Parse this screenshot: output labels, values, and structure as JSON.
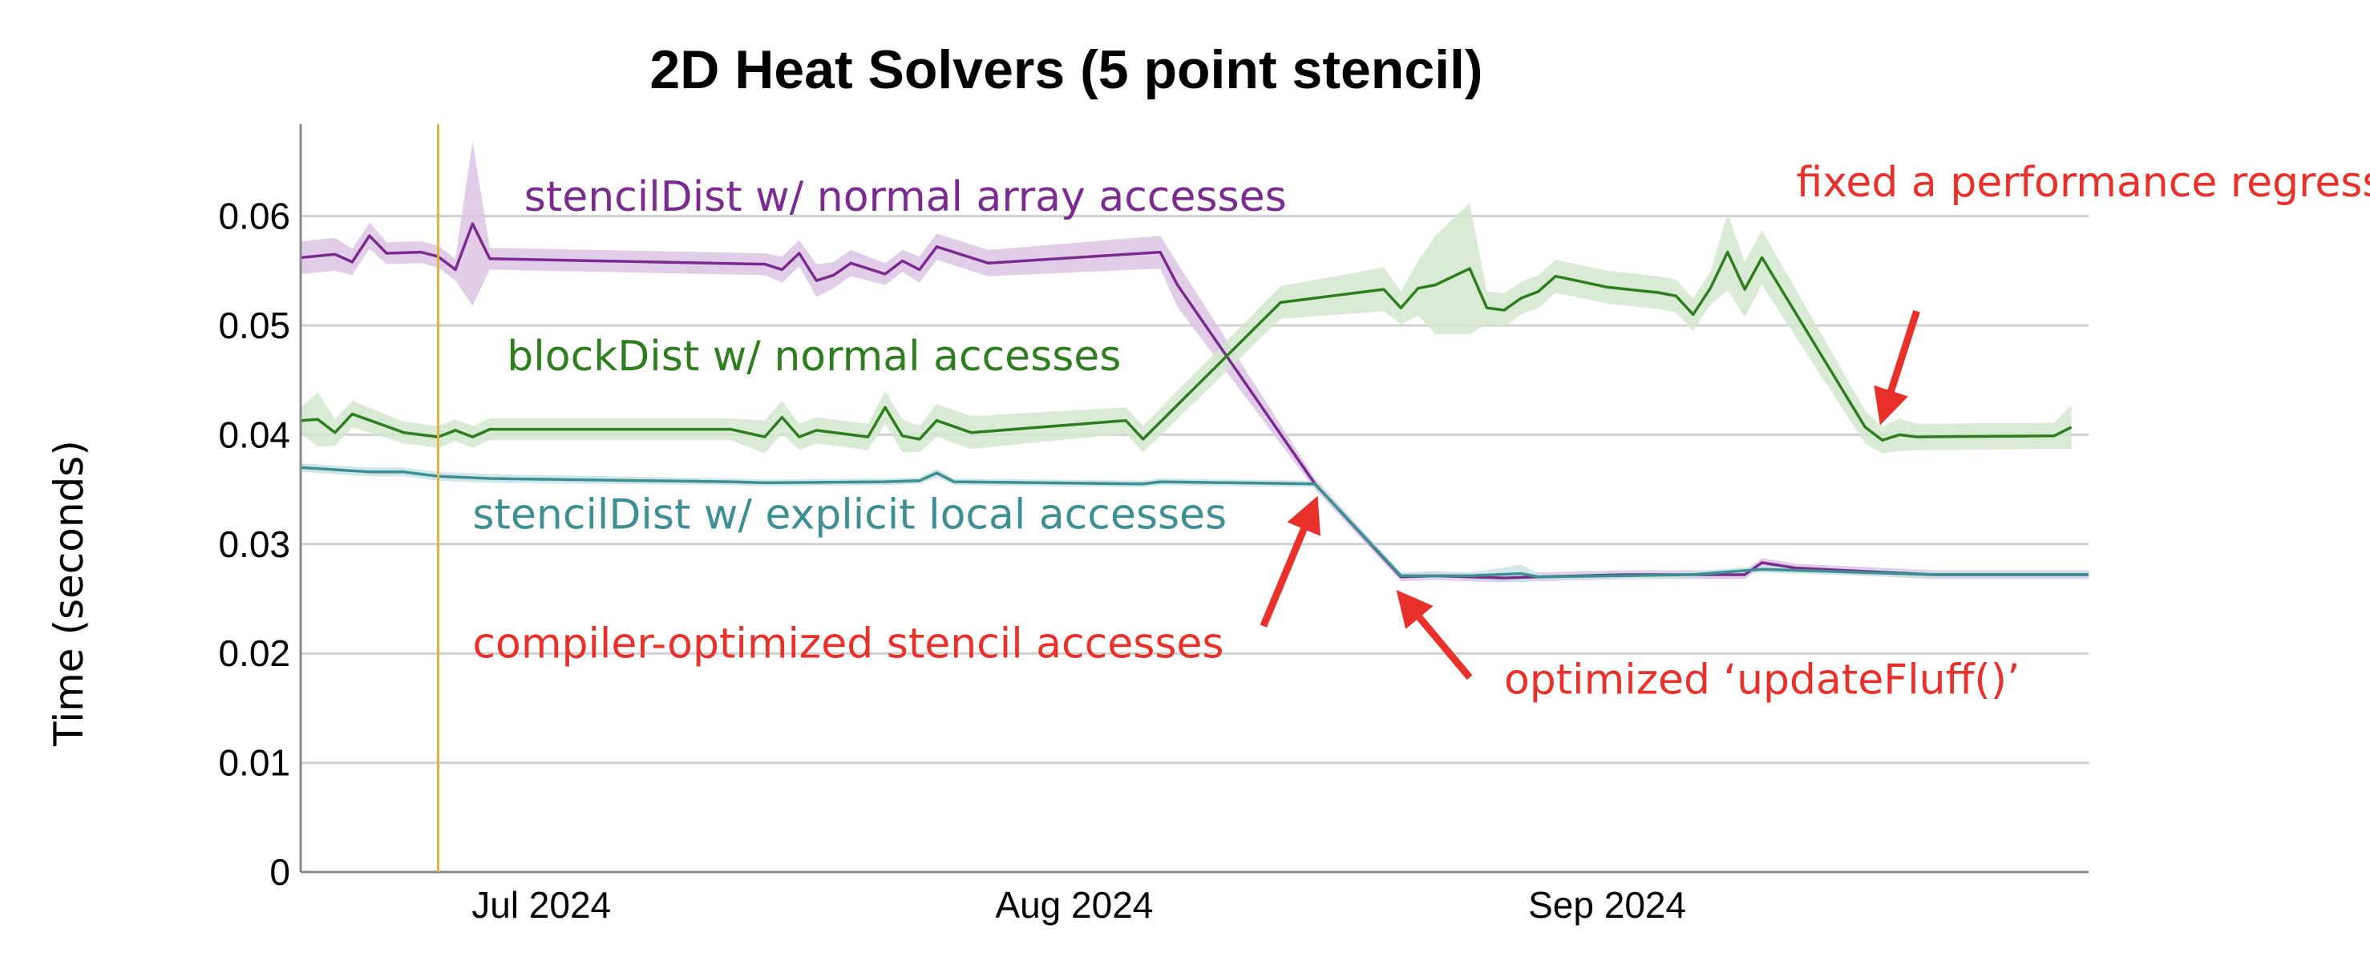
{
  "chart_data": {
    "type": "line",
    "title": "2D Heat Solvers (5 point stencil)",
    "xlabel": "",
    "ylabel": "Time (seconds)",
    "ylim": [
      0,
      0.06
    ],
    "y_ticks": [
      "0",
      "0.01",
      "0.02",
      "0.03",
      "0.04",
      "0.05",
      "0.06"
    ],
    "x_ticks": [
      {
        "date": "2024-07-01",
        "label": "Jul 2024"
      },
      {
        "date": "2024-08-01",
        "label": "Aug 2024"
      },
      {
        "date": "2024-09-01",
        "label": "Sep 2024"
      }
    ],
    "xlim": [
      "2024-06-17",
      "2024-09-29"
    ],
    "grid": true,
    "legend": "none",
    "vertical_marker": {
      "date": "2024-06-25",
      "color": "#e0b040"
    },
    "series": [
      {
        "name": "stencilDist w/ normal array accesses",
        "color": "#7b2a8f",
        "band_color": "#dcc4e3",
        "points": [
          [
            "2024-06-17",
            0.0562
          ],
          [
            "2024-06-19",
            0.0565
          ],
          [
            "2024-06-20",
            0.0558
          ],
          [
            "2024-06-21",
            0.0582
          ],
          [
            "2024-06-22",
            0.0566
          ],
          [
            "2024-06-24",
            0.0567
          ],
          [
            "2024-06-25",
            0.0563
          ],
          [
            "2024-06-26",
            0.0551
          ],
          [
            "2024-06-27",
            0.0593
          ],
          [
            "2024-06-28",
            0.0561
          ],
          [
            "2024-07-14",
            0.0556
          ],
          [
            "2024-07-15",
            0.0551
          ],
          [
            "2024-07-16",
            0.0566
          ],
          [
            "2024-07-17",
            0.0541
          ],
          [
            "2024-07-18",
            0.0546
          ],
          [
            "2024-07-19",
            0.0557
          ],
          [
            "2024-07-21",
            0.0547
          ],
          [
            "2024-07-22",
            0.0559
          ],
          [
            "2024-07-23",
            0.0551
          ],
          [
            "2024-07-24",
            0.0572
          ],
          [
            "2024-07-27",
            0.0557
          ],
          [
            "2024-08-06",
            0.0567
          ],
          [
            "2024-08-07",
            0.0537
          ],
          [
            "2024-08-15",
            0.0355
          ],
          [
            "2024-08-20",
            0.027
          ],
          [
            "2024-08-22",
            0.0271
          ],
          [
            "2024-08-24",
            0.027
          ],
          [
            "2024-08-26",
            0.0269
          ],
          [
            "2024-08-28",
            0.027
          ],
          [
            "2024-09-02",
            0.0272
          ],
          [
            "2024-09-06",
            0.0272
          ],
          [
            "2024-09-09",
            0.0272
          ],
          [
            "2024-09-10",
            0.0283
          ],
          [
            "2024-09-12",
            0.0278
          ],
          [
            "2024-09-20",
            0.0272
          ],
          [
            "2024-09-29",
            0.0272
          ]
        ],
        "band": [
          0.0015,
          0.0015,
          0.0012,
          0.0012,
          0.001,
          0.001,
          0.001,
          0.001,
          0.0075,
          0.001,
          0.001,
          0.0012,
          0.0012,
          0.0015,
          0.0012,
          0.0012,
          0.001,
          0.001,
          0.0012,
          0.0012,
          0.0012,
          0.0015,
          0.002,
          0.0005,
          0.0004,
          0.0004,
          0.0004,
          0.0004,
          0.0004,
          0.0004,
          0.0004,
          0.0004,
          0.0004,
          0.0004,
          0.0004,
          0.0004
        ]
      },
      {
        "name": "blockDist w/ normal accesses",
        "color": "#2e7d1f",
        "band_color": "#d2e8cc",
        "points": [
          [
            "2024-06-17",
            0.0413
          ],
          [
            "2024-06-18",
            0.0414
          ],
          [
            "2024-06-19",
            0.0402
          ],
          [
            "2024-06-20",
            0.0419
          ],
          [
            "2024-06-23",
            0.0402
          ],
          [
            "2024-06-25",
            0.0398
          ],
          [
            "2024-06-26",
            0.0404
          ],
          [
            "2024-06-27",
            0.0398
          ],
          [
            "2024-06-28",
            0.0405
          ],
          [
            "2024-07-12",
            0.0405
          ],
          [
            "2024-07-14",
            0.0398
          ],
          [
            "2024-07-15",
            0.0416
          ],
          [
            "2024-07-16",
            0.0398
          ],
          [
            "2024-07-17",
            0.0404
          ],
          [
            "2024-07-20",
            0.0398
          ],
          [
            "2024-07-21",
            0.0425
          ],
          [
            "2024-07-22",
            0.0399
          ],
          [
            "2024-07-23",
            0.0396
          ],
          [
            "2024-07-24",
            0.0413
          ],
          [
            "2024-07-26",
            0.0402
          ],
          [
            "2024-08-04",
            0.0413
          ],
          [
            "2024-08-05",
            0.0396
          ],
          [
            "2024-08-13",
            0.0521
          ],
          [
            "2024-08-19",
            0.0533
          ],
          [
            "2024-08-20",
            0.0516
          ],
          [
            "2024-08-21",
            0.0534
          ],
          [
            "2024-08-22",
            0.0537
          ],
          [
            "2024-08-24",
            0.0552
          ],
          [
            "2024-08-25",
            0.0516
          ],
          [
            "2024-08-26",
            0.0514
          ],
          [
            "2024-08-27",
            0.0525
          ],
          [
            "2024-08-28",
            0.0531
          ],
          [
            "2024-08-29",
            0.0545
          ],
          [
            "2024-09-01",
            0.0535
          ],
          [
            "2024-09-04",
            0.053
          ],
          [
            "2024-09-05",
            0.0527
          ],
          [
            "2024-09-06",
            0.051
          ],
          [
            "2024-09-07",
            0.0534
          ],
          [
            "2024-09-08",
            0.0567
          ],
          [
            "2024-09-09",
            0.0533
          ],
          [
            "2024-09-10",
            0.0562
          ],
          [
            "2024-09-16",
            0.0407
          ],
          [
            "2024-09-17",
            0.0395
          ],
          [
            "2024-09-18",
            0.04
          ],
          [
            "2024-09-19",
            0.0398
          ],
          [
            "2024-09-27",
            0.0399
          ],
          [
            "2024-09-28",
            0.0407
          ]
        ],
        "band": [
          0.0012,
          0.0025,
          0.0012,
          0.0012,
          0.001,
          0.001,
          0.001,
          0.001,
          0.001,
          0.001,
          0.0015,
          0.0015,
          0.0012,
          0.0012,
          0.0012,
          0.0015,
          0.0015,
          0.0012,
          0.0015,
          0.0015,
          0.0012,
          0.0012,
          0.0015,
          0.002,
          0.0015,
          0.0025,
          0.0045,
          0.006,
          0.0015,
          0.0015,
          0.0015,
          0.0015,
          0.0015,
          0.0015,
          0.0015,
          0.0015,
          0.0015,
          0.0015,
          0.0035,
          0.0025,
          0.0025,
          0.0015,
          0.0012,
          0.0015,
          0.0012,
          0.0012,
          0.002
        ]
      },
      {
        "name": "stencilDist w/ explicit local accesses",
        "color": "#3e8f93",
        "band_color": "#c8e3e4",
        "points": [
          [
            "2024-06-17",
            0.037
          ],
          [
            "2024-06-19",
            0.0368
          ],
          [
            "2024-06-21",
            0.0366
          ],
          [
            "2024-06-23",
            0.0366
          ],
          [
            "2024-06-25",
            0.0362
          ],
          [
            "2024-06-28",
            0.036
          ],
          [
            "2024-07-12",
            0.0357
          ],
          [
            "2024-07-14",
            0.0356
          ],
          [
            "2024-07-21",
            0.0357
          ],
          [
            "2024-07-23",
            0.0358
          ],
          [
            "2024-07-24",
            0.0365
          ],
          [
            "2024-07-25",
            0.0357
          ],
          [
            "2024-08-05",
            0.0355
          ],
          [
            "2024-08-06",
            0.0357
          ],
          [
            "2024-08-15",
            0.0355
          ],
          [
            "2024-08-20",
            0.0271
          ],
          [
            "2024-08-24",
            0.0271
          ],
          [
            "2024-08-27",
            0.0273
          ],
          [
            "2024-08-28",
            0.027
          ],
          [
            "2024-09-06",
            0.0272
          ],
          [
            "2024-09-10",
            0.0277
          ],
          [
            "2024-09-20",
            0.0272
          ],
          [
            "2024-09-29",
            0.0272
          ]
        ],
        "band": [
          0.0004,
          0.0004,
          0.0004,
          0.0004,
          0.0004,
          0.0004,
          0.0003,
          0.0003,
          0.0003,
          0.0003,
          0.0004,
          0.0003,
          0.0003,
          0.0003,
          0.0003,
          0.0003,
          0.0003,
          0.0008,
          0.0003,
          0.0003,
          0.0003,
          0.0003,
          0.0003
        ]
      }
    ],
    "series_labels": [
      {
        "text": "stencilDist w/ normal array accesses",
        "color": "#7b2a8f",
        "at": [
          "2024-06-30",
          0.0605
        ]
      },
      {
        "text": "blockDist w/ normal accesses",
        "color": "#2e7d1f",
        "at": [
          "2024-06-29",
          0.0459
        ]
      },
      {
        "text": "stencilDist w/ explicit local accesses",
        "color": "#3e8f93",
        "at": [
          "2024-06-27",
          0.0314
        ]
      }
    ],
    "annotations": [
      {
        "text": "fixed a performance regression",
        "color": "#e8312a",
        "at": [
          "2024-09-12",
          0.0618
        ],
        "arrow_from": [
          "2024-09-19",
          0.0513
        ],
        "arrow_to": [
          "2024-09-17",
          0.0415
        ]
      },
      {
        "text": "compiler-optimized stencil accesses",
        "color": "#e8312a",
        "at": [
          "2024-06-27",
          0.0196
        ],
        "arrow_from": [
          "2024-08-12",
          0.0225
        ],
        "arrow_to": [
          "2024-08-15",
          0.0338
        ]
      },
      {
        "text": "optimized ‘updateFluff()’",
        "color": "#e8312a",
        "at": [
          "2024-08-26",
          0.0163
        ],
        "arrow_from": [
          "2024-08-24",
          0.0178
        ],
        "arrow_to": [
          "2024-08-20",
          0.0253
        ]
      }
    ],
    "colors": {
      "grid": "#d0d0d0",
      "axis": "#888888",
      "annotation": "#e8312a"
    }
  }
}
